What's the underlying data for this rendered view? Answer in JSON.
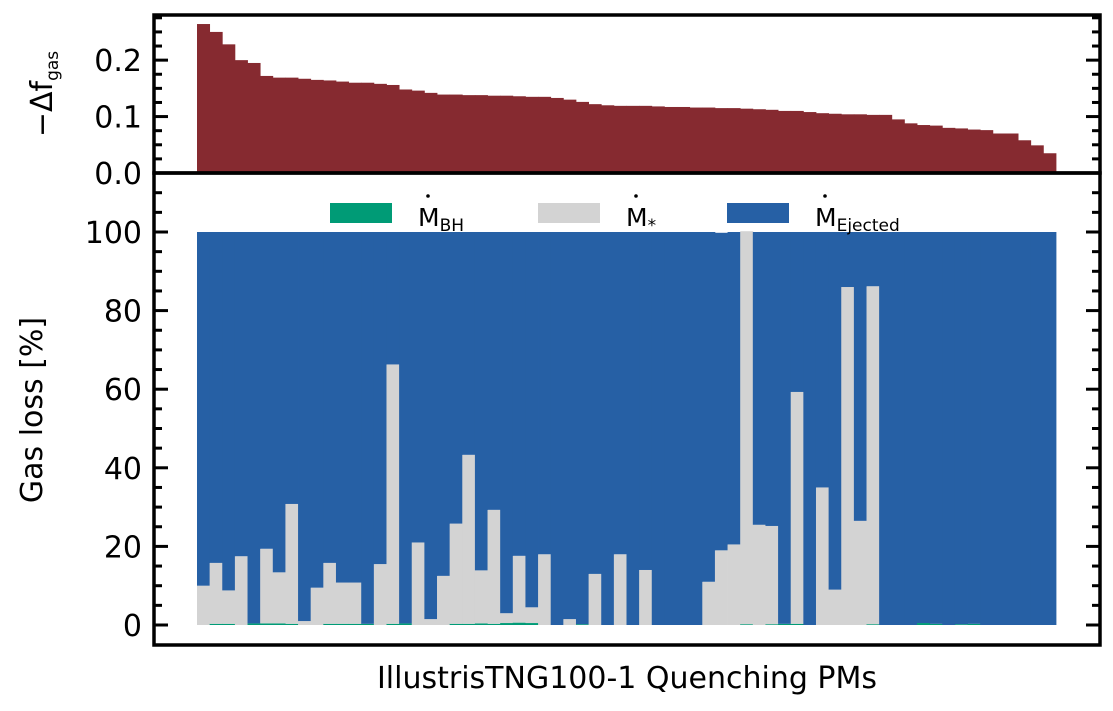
{
  "colors": {
    "top_bars": "#862a30",
    "bh": "#009b76",
    "stellar": "#d3d3d3",
    "ejected": "#2660a5",
    "axis": "#000000"
  },
  "chart_data": [
    {
      "type": "bar",
      "panel": "top",
      "ylabel_main": "−Δf",
      "ylabel_sub": "gas",
      "ylim": [
        0,
        0.28
      ],
      "yticks": [
        "0.0",
        "0.1",
        "0.2"
      ],
      "values": [
        0.264,
        0.25,
        0.228,
        0.2,
        0.195,
        0.172,
        0.169,
        0.169,
        0.167,
        0.165,
        0.164,
        0.162,
        0.16,
        0.16,
        0.158,
        0.156,
        0.148,
        0.146,
        0.142,
        0.139,
        0.139,
        0.138,
        0.138,
        0.137,
        0.137,
        0.136,
        0.135,
        0.135,
        0.133,
        0.13,
        0.126,
        0.122,
        0.12,
        0.119,
        0.119,
        0.119,
        0.118,
        0.117,
        0.117,
        0.116,
        0.116,
        0.115,
        0.115,
        0.114,
        0.113,
        0.112,
        0.11,
        0.11,
        0.108,
        0.106,
        0.105,
        0.104,
        0.104,
        0.103,
        0.103,
        0.095,
        0.088,
        0.085,
        0.084,
        0.08,
        0.079,
        0.077,
        0.076,
        0.07,
        0.07,
        0.058,
        0.049,
        0.035
      ]
    },
    {
      "type": "stacked-bar",
      "panel": "bottom",
      "ylabel": "Gas loss [%]",
      "xlabel": "IllustrisTNG100-1 Quenching PMs",
      "ylim": [
        -5,
        112
      ],
      "yticks": [
        "0",
        "20",
        "40",
        "60",
        "80",
        "100"
      ],
      "legend": [
        {
          "key": "bh",
          "label_main": "M",
          "label_sub": "BH"
        },
        {
          "key": "stellar",
          "label_main": "M",
          "label_sub": "*"
        },
        {
          "key": "ejected",
          "label_main": "M",
          "label_sub": "Ejected"
        }
      ],
      "legend_position": "top",
      "series": [
        {
          "key": "bh",
          "values": [
            0,
            0.3,
            0.3,
            0,
            0.4,
            0.4,
            0.4,
            0.3,
            0,
            0,
            0.3,
            0.3,
            0.3,
            0.3,
            0,
            0.3,
            0.4,
            0,
            0,
            0,
            0.3,
            0.3,
            0.4,
            0.3,
            0.5,
            0.6,
            0.5,
            0,
            0,
            0,
            0.2,
            0,
            0,
            0,
            0,
            0,
            0,
            0,
            0,
            0,
            0,
            0,
            0,
            0.2,
            0,
            0.2,
            0.3,
            0.3,
            0,
            0,
            0,
            0,
            0,
            0.2,
            0,
            0,
            0,
            0.5,
            0.3,
            0,
            0.2,
            0.3,
            0,
            0,
            0,
            0,
            0,
            0
          ]
        },
        {
          "key": "stellar",
          "values": [
            10,
            15.5,
            8.5,
            17.5,
            0,
            19,
            13,
            30.5,
            1,
            9.5,
            15.5,
            10.5,
            10.5,
            0,
            15.5,
            66,
            0,
            21,
            1.5,
            12.5,
            25.5,
            43,
            13.5,
            29,
            2.5,
            17,
            4,
            18,
            0,
            1.5,
            0,
            13,
            0,
            18,
            0,
            14,
            0,
            0,
            0,
            0,
            11,
            19,
            20.5,
            100,
            25.5,
            25,
            0,
            59,
            0,
            35,
            9,
            86,
            26.5,
            86,
            0,
            0,
            0,
            0,
            0,
            0,
            0,
            0,
            0,
            0,
            0,
            0,
            0,
            0
          ]
        },
        {
          "key": "ejected",
          "values": [
            90,
            84.2,
            91.2,
            82.5,
            99.6,
            80.6,
            86.6,
            69.2,
            99,
            90.5,
            84.2,
            89.2,
            89.2,
            99.7,
            84.5,
            33.7,
            99.6,
            79,
            98.5,
            87.5,
            74.2,
            56.7,
            86.1,
            70.7,
            97,
            82.4,
            95.5,
            82,
            100,
            98.5,
            99.8,
            87,
            100,
            82,
            100,
            86,
            100,
            100,
            100,
            100,
            89,
            80.8,
            79.5,
            0,
            74.5,
            74.8,
            99.7,
            40.7,
            100,
            65,
            91,
            14,
            73.5,
            13.8,
            100,
            100,
            100,
            99.5,
            99.7,
            100,
            99.8,
            99.7,
            100,
            100,
            100,
            100,
            100,
            100
          ]
        }
      ]
    }
  ]
}
